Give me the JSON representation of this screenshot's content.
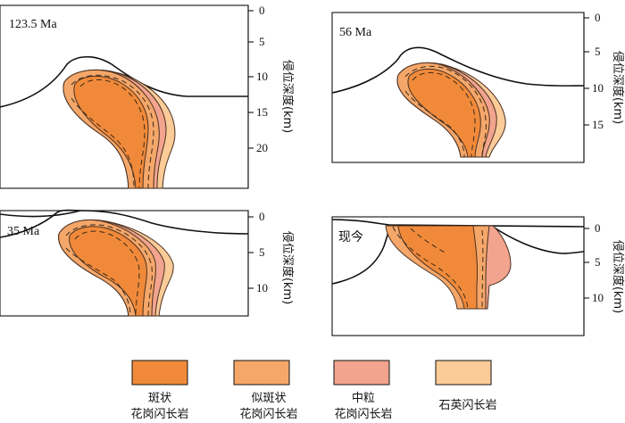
{
  "colors": {
    "porphyritic": "#F08A3A",
    "porphyritic_like": "#F5A76A",
    "medium_grain": "#F2A48E",
    "quartz_diorite": "#FBCB98"
  },
  "panels": [
    {
      "label": "123.5 Ma",
      "axis_title": "侵位深度(km)",
      "ticks": [
        "0",
        "5",
        "10",
        "15",
        "20"
      ]
    },
    {
      "label": "56 Ma",
      "axis_title": "侵位深度(km)",
      "ticks": [
        "0",
        "5",
        "10",
        "15"
      ]
    },
    {
      "label": "35 Ma",
      "axis_title": "侵位深度(km)",
      "ticks": [
        "0",
        "5",
        "10"
      ]
    },
    {
      "label": "现今",
      "axis_title": "侵位深度(km)",
      "ticks": [
        "0",
        "5",
        "10"
      ]
    }
  ],
  "legend": [
    {
      "line1": "斑状",
      "line2": "花岗闪长岩",
      "color_key": "porphyritic"
    },
    {
      "line1": "似斑状",
      "line2": "花岗闪长岩",
      "color_key": "porphyritic_like"
    },
    {
      "line1": "中粒",
      "line2": "花岗闪长岩",
      "color_key": "medium_grain"
    },
    {
      "line1": "石英闪长岩",
      "line2": "",
      "color_key": "quartz_diorite"
    }
  ]
}
